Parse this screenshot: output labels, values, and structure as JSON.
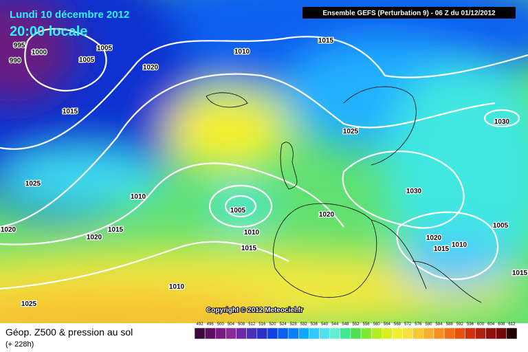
{
  "header": {
    "date": "Lundi 10 décembre 2012",
    "time": "20:00 locale",
    "run": "Ensemble GEFS (Perturbation 9)  -  06 Z du 01/12/2012"
  },
  "copyright": "Copyright © 2012 Meteociel.fr",
  "footer": {
    "title": "Géop. Z500 & pression au sol",
    "lead": "(+ 228h)"
  },
  "isobars": [
    "995",
    "1000",
    "990",
    "1005",
    "1005",
    "1020",
    "1010",
    "1015",
    "1015",
    "1025",
    "1030",
    "1025",
    "1010",
    "1005",
    "1010",
    "1015",
    "1020",
    "1020",
    "1015",
    "1020",
    "1030",
    "1005",
    "1020",
    "1015",
    "1010",
    "1015",
    "1010",
    "1025"
  ],
  "scale": {
    "labels": [
      492,
      496,
      500,
      504,
      508,
      512,
      516,
      520,
      524,
      528,
      532,
      536,
      540,
      544,
      548,
      552,
      556,
      560,
      564,
      568,
      572,
      576,
      580,
      584,
      588,
      592,
      596,
      600,
      604,
      608,
      612
    ],
    "colors": [
      "#3a0a3c",
      "#5a1060",
      "#7a1a80",
      "#8a2a9a",
      "#6a2aa8",
      "#4a30b8",
      "#2a30c8",
      "#1040e0",
      "#0a60f0",
      "#0a80f8",
      "#10a8ff",
      "#30c8ff",
      "#50e0f0",
      "#60f0d0",
      "#40e890",
      "#50e050",
      "#80e830",
      "#b0f020",
      "#d8f020",
      "#f0f030",
      "#f8e040",
      "#f8c830",
      "#f8b030",
      "#f89020",
      "#f07018",
      "#e85010",
      "#d03010",
      "#b02010",
      "#901010",
      "#700808",
      "#200000"
    ]
  }
}
